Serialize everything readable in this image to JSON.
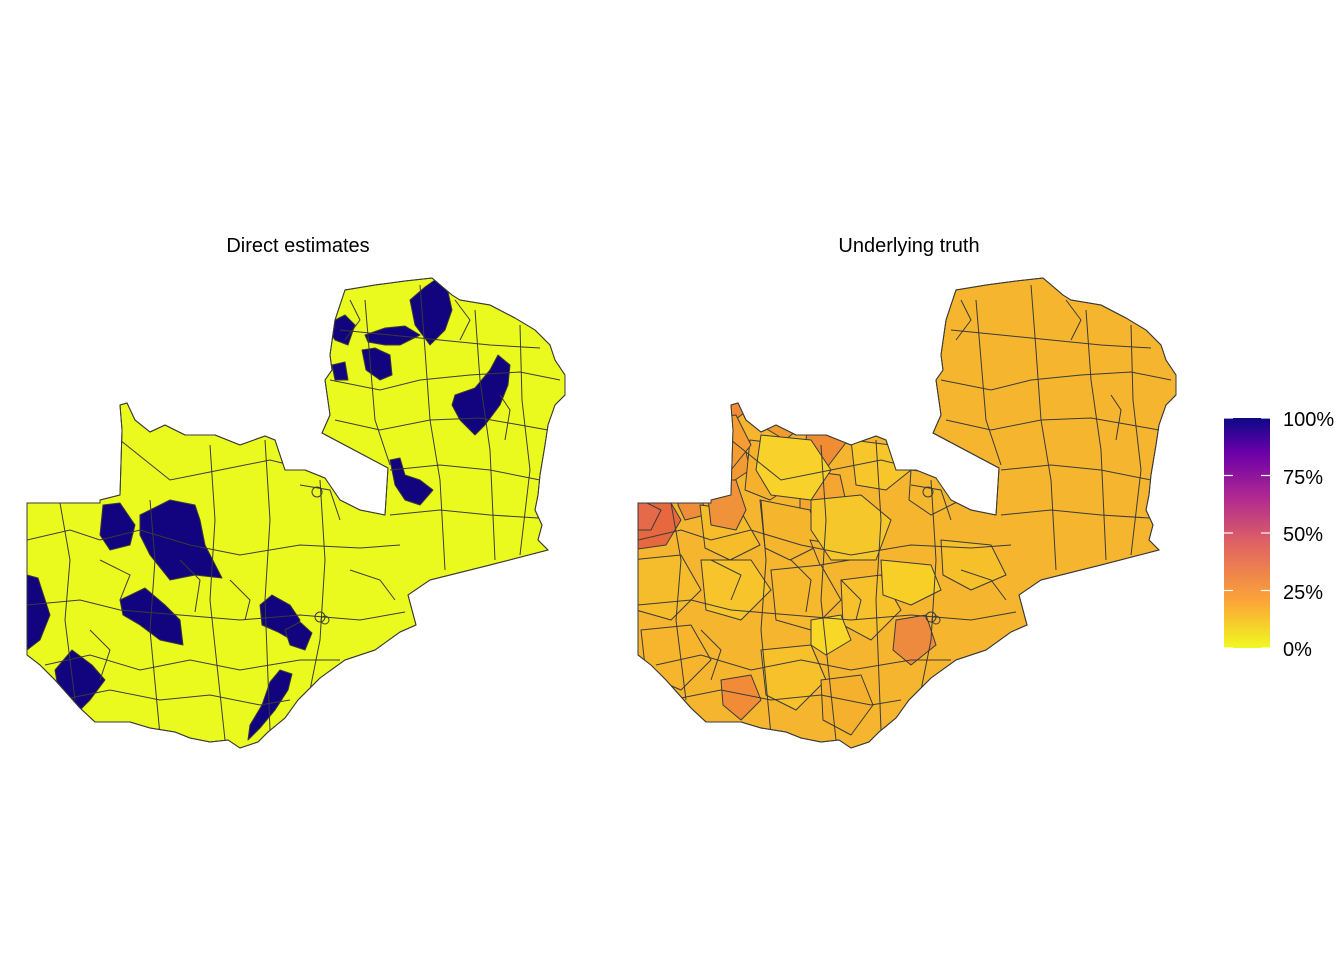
{
  "panels": [
    {
      "title": "Direct estimates",
      "mode": "direct"
    },
    {
      "title": "Underlying truth",
      "mode": "truth"
    }
  ],
  "legend": {
    "ticks": [
      "100%",
      "75%",
      "50%",
      "25%",
      "0%"
    ],
    "tick_values": [
      1.0,
      0.75,
      0.5,
      0.25,
      0.0
    ],
    "palette": [
      "#F0F921",
      "#FCA636",
      "#E16462",
      "#B12A90",
      "#6A00A8",
      "#0D0887"
    ]
  },
  "colors": {
    "direct_low": "#EBFA1E",
    "direct_high": "#12037E",
    "border": "#3A3A3A",
    "background": "#FFFFFF"
  }
}
